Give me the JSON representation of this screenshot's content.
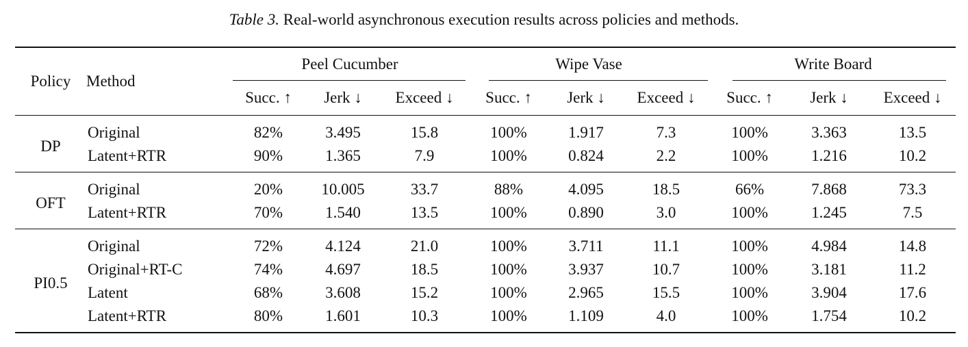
{
  "caption": {
    "label": "Table 3.",
    "text": "Real-world asynchronous execution results across policies and methods."
  },
  "header": {
    "policy": "Policy",
    "method": "Method",
    "tasks": [
      "Peel Cucumber",
      "Wipe Vase",
      "Write Board"
    ],
    "metrics": [
      "Succ. ↑",
      "Jerk ↓",
      "Exceed ↓"
    ]
  },
  "groups": [
    {
      "policy": "DP",
      "rows": [
        {
          "method": "Original",
          "bold_method": false,
          "values": [
            "82%",
            "3.495",
            "15.8",
            "100%",
            "1.917",
            "7.3",
            "100%",
            "3.363",
            "13.5"
          ],
          "bold": [
            false,
            false,
            false,
            false,
            false,
            false,
            false,
            false,
            false
          ]
        },
        {
          "method": "Latent+RTR",
          "bold_method": true,
          "values": [
            "90%",
            "1.365",
            "7.9",
            "100%",
            "0.824",
            "2.2",
            "100%",
            "1.216",
            "10.2"
          ],
          "bold": [
            true,
            true,
            true,
            false,
            true,
            true,
            false,
            true,
            true
          ]
        }
      ]
    },
    {
      "policy": "OFT",
      "rows": [
        {
          "method": "Original",
          "bold_method": false,
          "values": [
            "20%",
            "10.005",
            "33.7",
            "88%",
            "4.095",
            "18.5",
            "66%",
            "7.868",
            "73.3"
          ],
          "bold": [
            false,
            false,
            false,
            false,
            false,
            false,
            false,
            false,
            false
          ]
        },
        {
          "method": "Latent+RTR",
          "bold_method": true,
          "values": [
            "70%",
            "1.540",
            "13.5",
            "100%",
            "0.890",
            "3.0",
            "100%",
            "1.245",
            "7.5"
          ],
          "bold": [
            true,
            true,
            true,
            true,
            true,
            true,
            true,
            true,
            true
          ]
        }
      ]
    },
    {
      "policy": "PI0.5",
      "rows": [
        {
          "method": "Original",
          "bold_method": false,
          "values": [
            "72%",
            "4.124",
            "21.0",
            "100%",
            "3.711",
            "11.1",
            "100%",
            "4.984",
            "14.8"
          ],
          "bold": [
            false,
            false,
            false,
            false,
            false,
            false,
            false,
            false,
            false
          ]
        },
        {
          "method": "Original+RT-C",
          "bold_method": false,
          "values": [
            "74%",
            "4.697",
            "18.5",
            "100%",
            "3.937",
            "10.7",
            "100%",
            "3.181",
            "11.2"
          ],
          "bold": [
            false,
            false,
            false,
            false,
            false,
            false,
            false,
            false,
            false
          ]
        },
        {
          "method": "Latent",
          "bold_method": false,
          "values": [
            "68%",
            "3.608",
            "15.2",
            "100%",
            "2.965",
            "15.5",
            "100%",
            "3.904",
            "17.6"
          ],
          "bold": [
            false,
            false,
            false,
            false,
            false,
            false,
            false,
            false,
            false
          ]
        },
        {
          "method": "Latent+RTR",
          "bold_method": true,
          "values": [
            "80%",
            "1.601",
            "10.3",
            "100%",
            "1.109",
            "4.0",
            "100%",
            "1.754",
            "10.2"
          ],
          "bold": [
            true,
            true,
            true,
            false,
            true,
            true,
            false,
            true,
            true
          ]
        }
      ]
    }
  ]
}
